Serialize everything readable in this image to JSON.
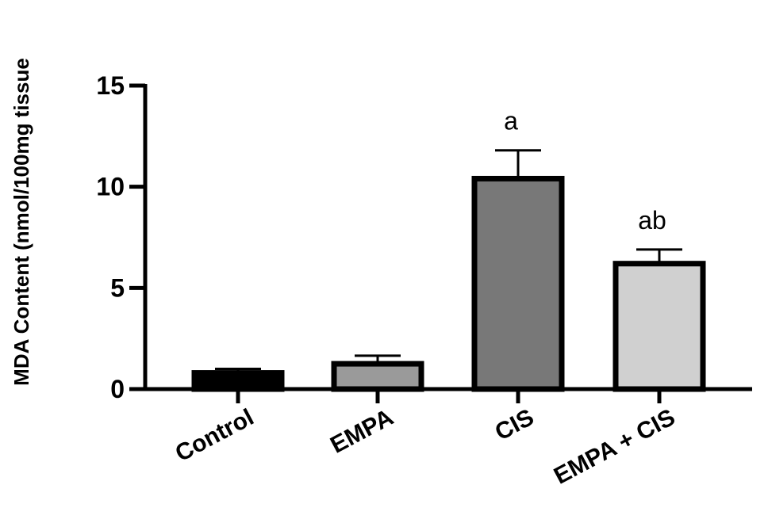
{
  "chart_data": {
    "type": "bar",
    "ylabel": "MDA Content (nmol/100mg tissue",
    "xlabel": "",
    "ylim": [
      0,
      15
    ],
    "yticks": [
      "0",
      "5",
      "10",
      "15"
    ],
    "ytick_values": [
      0,
      5,
      10,
      15
    ],
    "categories": [
      "Control",
      "EMPA",
      "CIS",
      "EMPA + CIS"
    ],
    "values": [
      0.8,
      1.25,
      10.4,
      6.2
    ],
    "errors": [
      0.2,
      0.4,
      1.4,
      0.7
    ],
    "annotations": [
      "",
      "",
      "a",
      "ab"
    ],
    "bar_colors": [
      "#000000",
      "#9a9a9a",
      "#787878",
      "#d0d0d0"
    ],
    "edge_color": "#000000",
    "grid": false,
    "legend": "none"
  }
}
